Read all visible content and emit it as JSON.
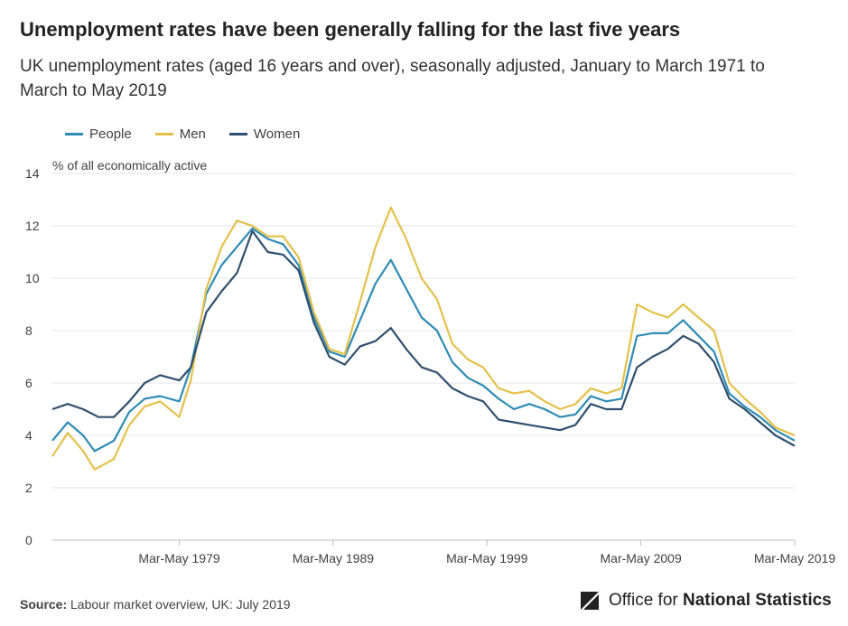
{
  "header": {
    "title": "Unemployment rates have been generally falling for the last five years",
    "subtitle": "UK unemployment rates (aged 16 years and over), seasonally adjusted, January to March 1971 to March to May 2019"
  },
  "legend": [
    {
      "label": "People",
      "color": "#206095"
    },
    {
      "label": "Men",
      "color": "#E6C44A"
    },
    {
      "label": "Women",
      "color": "#2E4E6C"
    }
  ],
  "footer": {
    "source_label": "Source:",
    "source_text": "Labour market overview, UK: July 2019",
    "logo_text_regular": "Office for",
    "logo_text_bold": "National Statistics"
  },
  "chart_data": {
    "type": "line",
    "ylabel": "% of all economically active",
    "ylim": [
      0,
      14
    ],
    "yticks": [
      0,
      2,
      4,
      6,
      8,
      10,
      12,
      14
    ],
    "xlim": [
      1971.0,
      2019.25
    ],
    "xticks": [
      {
        "label": "Mar-May 1979",
        "x": 1979.25
      },
      {
        "label": "Mar-May 1989",
        "x": 1989.25
      },
      {
        "label": "Mar-May 1999",
        "x": 1999.25
      },
      {
        "label": "Mar-May 2009",
        "x": 2009.25
      },
      {
        "label": "Mar-May 2019",
        "x": 2019.25
      }
    ],
    "grid": true,
    "legend_position": "top-left",
    "series": [
      {
        "name": "People",
        "color": "#2E8BB5",
        "points": [
          [
            1971.0,
            3.8
          ],
          [
            1972.0,
            4.5
          ],
          [
            1973.0,
            4.0
          ],
          [
            1973.75,
            3.4
          ],
          [
            1975.0,
            3.8
          ],
          [
            1976.0,
            4.9
          ],
          [
            1977.0,
            5.4
          ],
          [
            1978.0,
            5.5
          ],
          [
            1979.25,
            5.3
          ],
          [
            1980.0,
            6.6
          ],
          [
            1981.0,
            9.4
          ],
          [
            1982.0,
            10.5
          ],
          [
            1983.0,
            11.2
          ],
          [
            1984.0,
            11.9
          ],
          [
            1985.0,
            11.5
          ],
          [
            1986.0,
            11.3
          ],
          [
            1987.0,
            10.5
          ],
          [
            1988.0,
            8.5
          ],
          [
            1989.0,
            7.2
          ],
          [
            1990.0,
            7.0
          ],
          [
            1991.0,
            8.4
          ],
          [
            1992.0,
            9.8
          ],
          [
            1993.0,
            10.7
          ],
          [
            1994.0,
            9.6
          ],
          [
            1995.0,
            8.5
          ],
          [
            1996.0,
            8.0
          ],
          [
            1997.0,
            6.8
          ],
          [
            1998.0,
            6.2
          ],
          [
            1999.0,
            5.9
          ],
          [
            2000.0,
            5.4
          ],
          [
            2001.0,
            5.0
          ],
          [
            2002.0,
            5.2
          ],
          [
            2003.0,
            5.0
          ],
          [
            2004.0,
            4.7
          ],
          [
            2005.0,
            4.8
          ],
          [
            2006.0,
            5.5
          ],
          [
            2007.0,
            5.3
          ],
          [
            2008.0,
            5.4
          ],
          [
            2009.0,
            7.8
          ],
          [
            2010.0,
            7.9
          ],
          [
            2011.0,
            7.9
          ],
          [
            2012.0,
            8.4
          ],
          [
            2013.0,
            7.8
          ],
          [
            2014.0,
            7.2
          ],
          [
            2015.0,
            5.6
          ],
          [
            2016.0,
            5.1
          ],
          [
            2017.0,
            4.7
          ],
          [
            2018.0,
            4.2
          ],
          [
            2019.25,
            3.8
          ]
        ]
      },
      {
        "name": "Men",
        "color": "#E4C04B",
        "points": [
          [
            1971.0,
            3.2
          ],
          [
            1972.0,
            4.1
          ],
          [
            1973.0,
            3.4
          ],
          [
            1973.75,
            2.7
          ],
          [
            1975.0,
            3.1
          ],
          [
            1976.0,
            4.4
          ],
          [
            1977.0,
            5.1
          ],
          [
            1978.0,
            5.3
          ],
          [
            1979.25,
            4.7
          ],
          [
            1980.0,
            6.1
          ],
          [
            1981.0,
            9.6
          ],
          [
            1982.0,
            11.2
          ],
          [
            1983.0,
            12.2
          ],
          [
            1984.0,
            12.0
          ],
          [
            1985.0,
            11.6
          ],
          [
            1986.0,
            11.6
          ],
          [
            1987.0,
            10.8
          ],
          [
            1988.0,
            8.7
          ],
          [
            1989.0,
            7.3
          ],
          [
            1990.0,
            7.1
          ],
          [
            1991.0,
            9.1
          ],
          [
            1992.0,
            11.2
          ],
          [
            1993.0,
            12.7
          ],
          [
            1994.0,
            11.5
          ],
          [
            1995.0,
            10.0
          ],
          [
            1996.0,
            9.2
          ],
          [
            1997.0,
            7.5
          ],
          [
            1998.0,
            6.9
          ],
          [
            1999.0,
            6.6
          ],
          [
            2000.0,
            5.8
          ],
          [
            2001.0,
            5.6
          ],
          [
            2002.0,
            5.7
          ],
          [
            2003.0,
            5.3
          ],
          [
            2004.0,
            5.0
          ],
          [
            2005.0,
            5.2
          ],
          [
            2006.0,
            5.8
          ],
          [
            2007.0,
            5.6
          ],
          [
            2008.0,
            5.8
          ],
          [
            2009.0,
            9.0
          ],
          [
            2010.0,
            8.7
          ],
          [
            2011.0,
            8.5
          ],
          [
            2012.0,
            9.0
          ],
          [
            2013.0,
            8.5
          ],
          [
            2014.0,
            8.0
          ],
          [
            2015.0,
            6.0
          ],
          [
            2016.0,
            5.4
          ],
          [
            2017.0,
            4.9
          ],
          [
            2018.0,
            4.3
          ],
          [
            2019.25,
            4.0
          ]
        ]
      },
      {
        "name": "Women",
        "color": "#2F4F6E",
        "points": [
          [
            1971.0,
            5.0
          ],
          [
            1972.0,
            5.2
          ],
          [
            1973.0,
            5.0
          ],
          [
            1974.0,
            4.7
          ],
          [
            1975.0,
            4.7
          ],
          [
            1976.0,
            5.3
          ],
          [
            1977.0,
            6.0
          ],
          [
            1978.0,
            6.3
          ],
          [
            1979.25,
            6.1
          ],
          [
            1980.0,
            6.6
          ],
          [
            1981.0,
            8.7
          ],
          [
            1982.0,
            9.5
          ],
          [
            1983.0,
            10.2
          ],
          [
            1984.0,
            11.8
          ],
          [
            1985.0,
            11.0
          ],
          [
            1986.0,
            10.9
          ],
          [
            1987.0,
            10.3
          ],
          [
            1988.0,
            8.3
          ],
          [
            1989.0,
            7.0
          ],
          [
            1990.0,
            6.7
          ],
          [
            1991.0,
            7.4
          ],
          [
            1992.0,
            7.6
          ],
          [
            1993.0,
            8.1
          ],
          [
            1994.0,
            7.3
          ],
          [
            1995.0,
            6.6
          ],
          [
            1996.0,
            6.4
          ],
          [
            1997.0,
            5.8
          ],
          [
            1998.0,
            5.5
          ],
          [
            1999.0,
            5.3
          ],
          [
            2000.0,
            4.6
          ],
          [
            2001.0,
            4.5
          ],
          [
            2002.0,
            4.4
          ],
          [
            2003.0,
            4.3
          ],
          [
            2004.0,
            4.2
          ],
          [
            2005.0,
            4.4
          ],
          [
            2006.0,
            5.2
          ],
          [
            2007.0,
            5.0
          ],
          [
            2008.0,
            5.0
          ],
          [
            2009.0,
            6.6
          ],
          [
            2010.0,
            7.0
          ],
          [
            2011.0,
            7.3
          ],
          [
            2012.0,
            7.8
          ],
          [
            2013.0,
            7.5
          ],
          [
            2014.0,
            6.8
          ],
          [
            2015.0,
            5.4
          ],
          [
            2016.0,
            5.0
          ],
          [
            2017.0,
            4.5
          ],
          [
            2018.0,
            4.0
          ],
          [
            2019.25,
            3.6
          ]
        ]
      }
    ]
  }
}
